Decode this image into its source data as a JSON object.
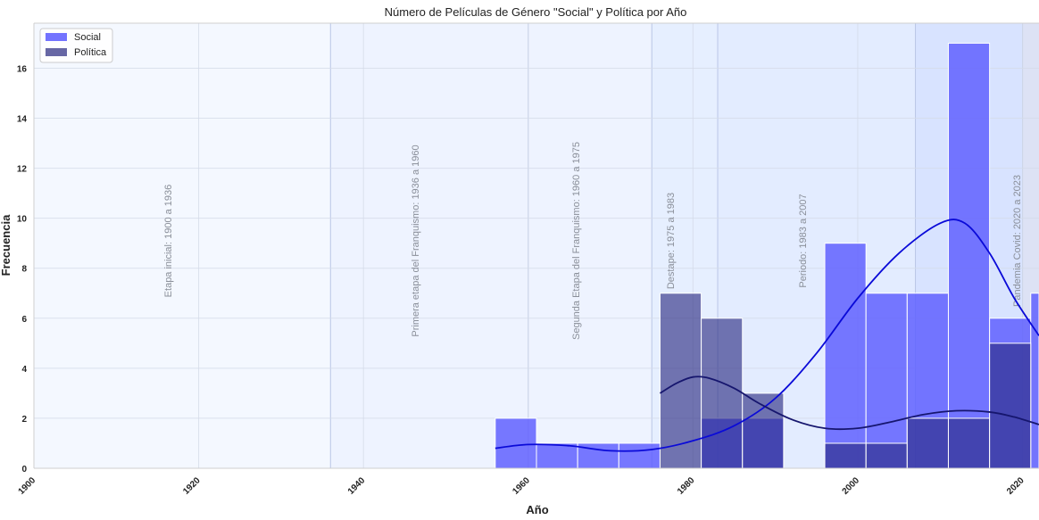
{
  "chart_data": {
    "type": "bar",
    "title": "Número de Películas de Género \"Social\" y Política por Año",
    "xlabel": "Año",
    "ylabel": "Frecuencia",
    "xlim": [
      1900,
      2022
    ],
    "ylim": [
      0,
      17.8
    ],
    "x_ticks": [
      "1900",
      "1920",
      "1940",
      "1960",
      "1980",
      "2000",
      "2020"
    ],
    "y_ticks": [
      "0",
      "2",
      "4",
      "6",
      "8",
      "10",
      "12",
      "14",
      "16"
    ],
    "grid": true,
    "legend_position": "top-left",
    "bin_width": 5,
    "series": [
      {
        "name": "Social",
        "color": "#5b5bff",
        "bins": [
          {
            "start": 1956,
            "value": 2
          },
          {
            "start": 1961,
            "value": 1
          },
          {
            "start": 1966,
            "value": 1
          },
          {
            "start": 1971,
            "value": 1
          },
          {
            "start": 1976,
            "value": 0
          },
          {
            "start": 1981,
            "value": 2
          },
          {
            "start": 1986,
            "value": 2
          },
          {
            "start": 1991,
            "value": 0
          },
          {
            "start": 1996,
            "value": 9
          },
          {
            "start": 2001,
            "value": 7
          },
          {
            "start": 2006,
            "value": 7
          },
          {
            "start": 2011,
            "value": 17
          },
          {
            "start": 2016,
            "value": 6
          },
          {
            "start": 2021,
            "value": 7
          }
        ],
        "kde": [
          [
            1956,
            0.8
          ],
          [
            1960,
            0.95
          ],
          [
            1965,
            0.9
          ],
          [
            1970,
            0.7
          ],
          [
            1975,
            0.75
          ],
          [
            1980,
            1.1
          ],
          [
            1985,
            1.7
          ],
          [
            1990,
            2.8
          ],
          [
            1995,
            4.6
          ],
          [
            2000,
            6.8
          ],
          [
            2005,
            8.6
          ],
          [
            2010,
            9.8
          ],
          [
            2013,
            9.8
          ],
          [
            2016,
            8.6
          ],
          [
            2019,
            6.8
          ],
          [
            2022,
            5.3
          ]
        ]
      },
      {
        "name": "Política",
        "color": "#26267f",
        "bins": [
          {
            "start": 1956,
            "value": 0
          },
          {
            "start": 1961,
            "value": 0
          },
          {
            "start": 1966,
            "value": 0
          },
          {
            "start": 1971,
            "value": 0
          },
          {
            "start": 1976,
            "value": 7
          },
          {
            "start": 1981,
            "value": 6
          },
          {
            "start": 1986,
            "value": 3
          },
          {
            "start": 1991,
            "value": 0
          },
          {
            "start": 1996,
            "value": 1
          },
          {
            "start": 2001,
            "value": 1
          },
          {
            "start": 2006,
            "value": 2
          },
          {
            "start": 2011,
            "value": 2
          },
          {
            "start": 2016,
            "value": 5
          },
          {
            "start": 2021,
            "value": 0
          }
        ],
        "kde": [
          [
            1976,
            3.0
          ],
          [
            1978,
            3.4
          ],
          [
            1980,
            3.65
          ],
          [
            1982,
            3.6
          ],
          [
            1985,
            3.2
          ],
          [
            1988,
            2.6
          ],
          [
            1992,
            1.95
          ],
          [
            1996,
            1.6
          ],
          [
            2000,
            1.6
          ],
          [
            2004,
            1.85
          ],
          [
            2008,
            2.15
          ],
          [
            2012,
            2.3
          ],
          [
            2016,
            2.25
          ],
          [
            2019,
            2.05
          ],
          [
            2022,
            1.75
          ]
        ]
      }
    ],
    "periods": [
      {
        "label": "Etapa inicial: 1900 a 1936",
        "start": 1900,
        "end": 1936,
        "fill": "#f4f8ff"
      },
      {
        "label": "Primera etapa del Franquismo: 1936 a 1960",
        "start": 1936,
        "end": 1960,
        "fill": "#eef3ff"
      },
      {
        "label": "Segunda Etapa del Franquismo: 1960 a 1975",
        "start": 1960,
        "end": 1975,
        "fill": "#eef3ff"
      },
      {
        "label": "Destape: 1975 a 1983",
        "start": 1975,
        "end": 1983,
        "fill": "#e6efff"
      },
      {
        "label": "Periodo: 1983 a 2007",
        "start": 1983,
        "end": 2007,
        "fill": "#e3ecff"
      },
      {
        "label": "",
        "start": 2007,
        "end": 2020,
        "fill": "#d8e3ff"
      },
      {
        "label": "Pandemia Covid: 2020 a 2023",
        "start": 2020,
        "end": 2023,
        "fill": "#dde2f5"
      }
    ]
  }
}
